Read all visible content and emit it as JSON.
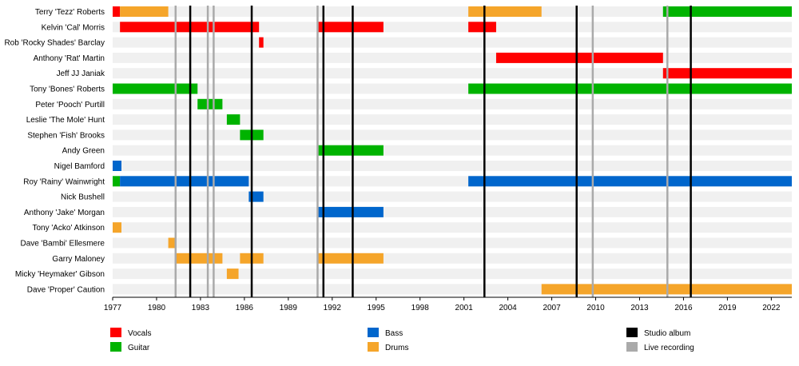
{
  "chart_data": {
    "type": "timeline",
    "x_range": [
      1977,
      2023.4
    ],
    "tick_years": [
      1977,
      1980,
      1983,
      1986,
      1989,
      1992,
      1995,
      1998,
      2001,
      2004,
      2007,
      2010,
      2013,
      2016,
      2019,
      2022
    ],
    "tick_labels": [
      "1977",
      "1980",
      "1983",
      "1986",
      "1989",
      "1992",
      "1995",
      "1998",
      "2001",
      "2004",
      "2007",
      "2010",
      "2013",
      "2016",
      "2019",
      "2022"
    ],
    "members": [
      "Terry 'Tezz' Roberts",
      "Kelvin 'Cal' Morris",
      "Rob 'Rocky Shades' Barclay",
      "Anthony 'Rat' Martin",
      "Jeff JJ Janiak",
      "Tony 'Bones' Roberts",
      "Peter 'Pooch' Purtill",
      "Leslie 'The Mole' Hunt",
      "Stephen 'Fish' Brooks",
      "Andy Green",
      "Nigel Bamford",
      "Roy 'Rainy' Wainwright",
      "Nick Bushell",
      "Anthony 'Jake' Morgan",
      "Tony 'Acko' Atkinson",
      "Dave 'Bambi' Ellesmere",
      "Garry Maloney",
      "Micky 'Heymaker' Gibson",
      "Dave 'Proper' Caution"
    ],
    "roles": [
      {
        "key": "vocals",
        "label": "Vocals",
        "color": "#ff0000"
      },
      {
        "key": "guitar",
        "label": "Guitar",
        "color": "#00b300"
      },
      {
        "key": "bass",
        "label": "Bass",
        "color": "#0066cc"
      },
      {
        "key": "drums",
        "label": "Drums",
        "color": "#f5a52a"
      }
    ],
    "events": [
      {
        "key": "studio",
        "label": "Studio album",
        "color": "#000000"
      },
      {
        "key": "live",
        "label": "Live recording",
        "color": "#aaaaaa"
      }
    ],
    "spans": [
      {
        "member": 0,
        "role": "vocals",
        "start": 1977.0,
        "end": 1977.5
      },
      {
        "member": 0,
        "role": "drums",
        "start": 1977.5,
        "end": 1980.8
      },
      {
        "member": 0,
        "role": "drums",
        "start": 2001.3,
        "end": 2006.3
      },
      {
        "member": 0,
        "role": "guitar",
        "start": 2014.6,
        "end": 2023.4
      },
      {
        "member": 1,
        "role": "vocals",
        "start": 1977.5,
        "end": 1987.0
      },
      {
        "member": 1,
        "role": "vocals",
        "start": 1991.0,
        "end": 1995.5
      },
      {
        "member": 1,
        "role": "vocals",
        "start": 2001.3,
        "end": 2003.2
      },
      {
        "member": 2,
        "role": "vocals",
        "start": 1987.0,
        "end": 1987.3
      },
      {
        "member": 3,
        "role": "vocals",
        "start": 2003.2,
        "end": 2014.6
      },
      {
        "member": 4,
        "role": "vocals",
        "start": 2014.6,
        "end": 2023.4
      },
      {
        "member": 5,
        "role": "guitar",
        "start": 1977.0,
        "end": 1982.8
      },
      {
        "member": 5,
        "role": "guitar",
        "start": 2001.3,
        "end": 2023.4
      },
      {
        "member": 6,
        "role": "guitar",
        "start": 1982.8,
        "end": 1984.5
      },
      {
        "member": 7,
        "role": "guitar",
        "start": 1984.8,
        "end": 1985.7
      },
      {
        "member": 8,
        "role": "guitar",
        "start": 1985.7,
        "end": 1987.3
      },
      {
        "member": 9,
        "role": "guitar",
        "start": 1991.0,
        "end": 1995.5
      },
      {
        "member": 10,
        "role": "bass",
        "start": 1977.0,
        "end": 1977.6
      },
      {
        "member": 11,
        "role": "guitar",
        "start": 1977.0,
        "end": 1977.5
      },
      {
        "member": 11,
        "role": "bass",
        "start": 1977.5,
        "end": 1986.3
      },
      {
        "member": 11,
        "role": "bass",
        "start": 2001.3,
        "end": 2023.4
      },
      {
        "member": 12,
        "role": "bass",
        "start": 1986.3,
        "end": 1987.3
      },
      {
        "member": 13,
        "role": "bass",
        "start": 1991.0,
        "end": 1995.5
      },
      {
        "member": 14,
        "role": "drums",
        "start": 1977.0,
        "end": 1977.6
      },
      {
        "member": 15,
        "role": "drums",
        "start": 1980.8,
        "end": 1981.3
      },
      {
        "member": 16,
        "role": "drums",
        "start": 1981.3,
        "end": 1984.5
      },
      {
        "member": 16,
        "role": "drums",
        "start": 1985.7,
        "end": 1987.3
      },
      {
        "member": 16,
        "role": "drums",
        "start": 1991.0,
        "end": 1995.5
      },
      {
        "member": 17,
        "role": "drums",
        "start": 1984.8,
        "end": 1985.6
      },
      {
        "member": 18,
        "role": "drums",
        "start": 2006.3,
        "end": 2023.4
      }
    ],
    "event_lines": [
      {
        "type": "live",
        "year": 1981.3
      },
      {
        "type": "studio",
        "year": 1982.3
      },
      {
        "type": "live",
        "year": 1983.5
      },
      {
        "type": "live",
        "year": 1983.9
      },
      {
        "type": "studio",
        "year": 1986.5
      },
      {
        "type": "live",
        "year": 1991.0
      },
      {
        "type": "studio",
        "year": 1991.4
      },
      {
        "type": "studio",
        "year": 1993.4
      },
      {
        "type": "studio",
        "year": 2002.4
      },
      {
        "type": "studio",
        "year": 2008.7
      },
      {
        "type": "live",
        "year": 2009.8
      },
      {
        "type": "live",
        "year": 2014.9
      },
      {
        "type": "studio",
        "year": 2016.5
      }
    ]
  }
}
